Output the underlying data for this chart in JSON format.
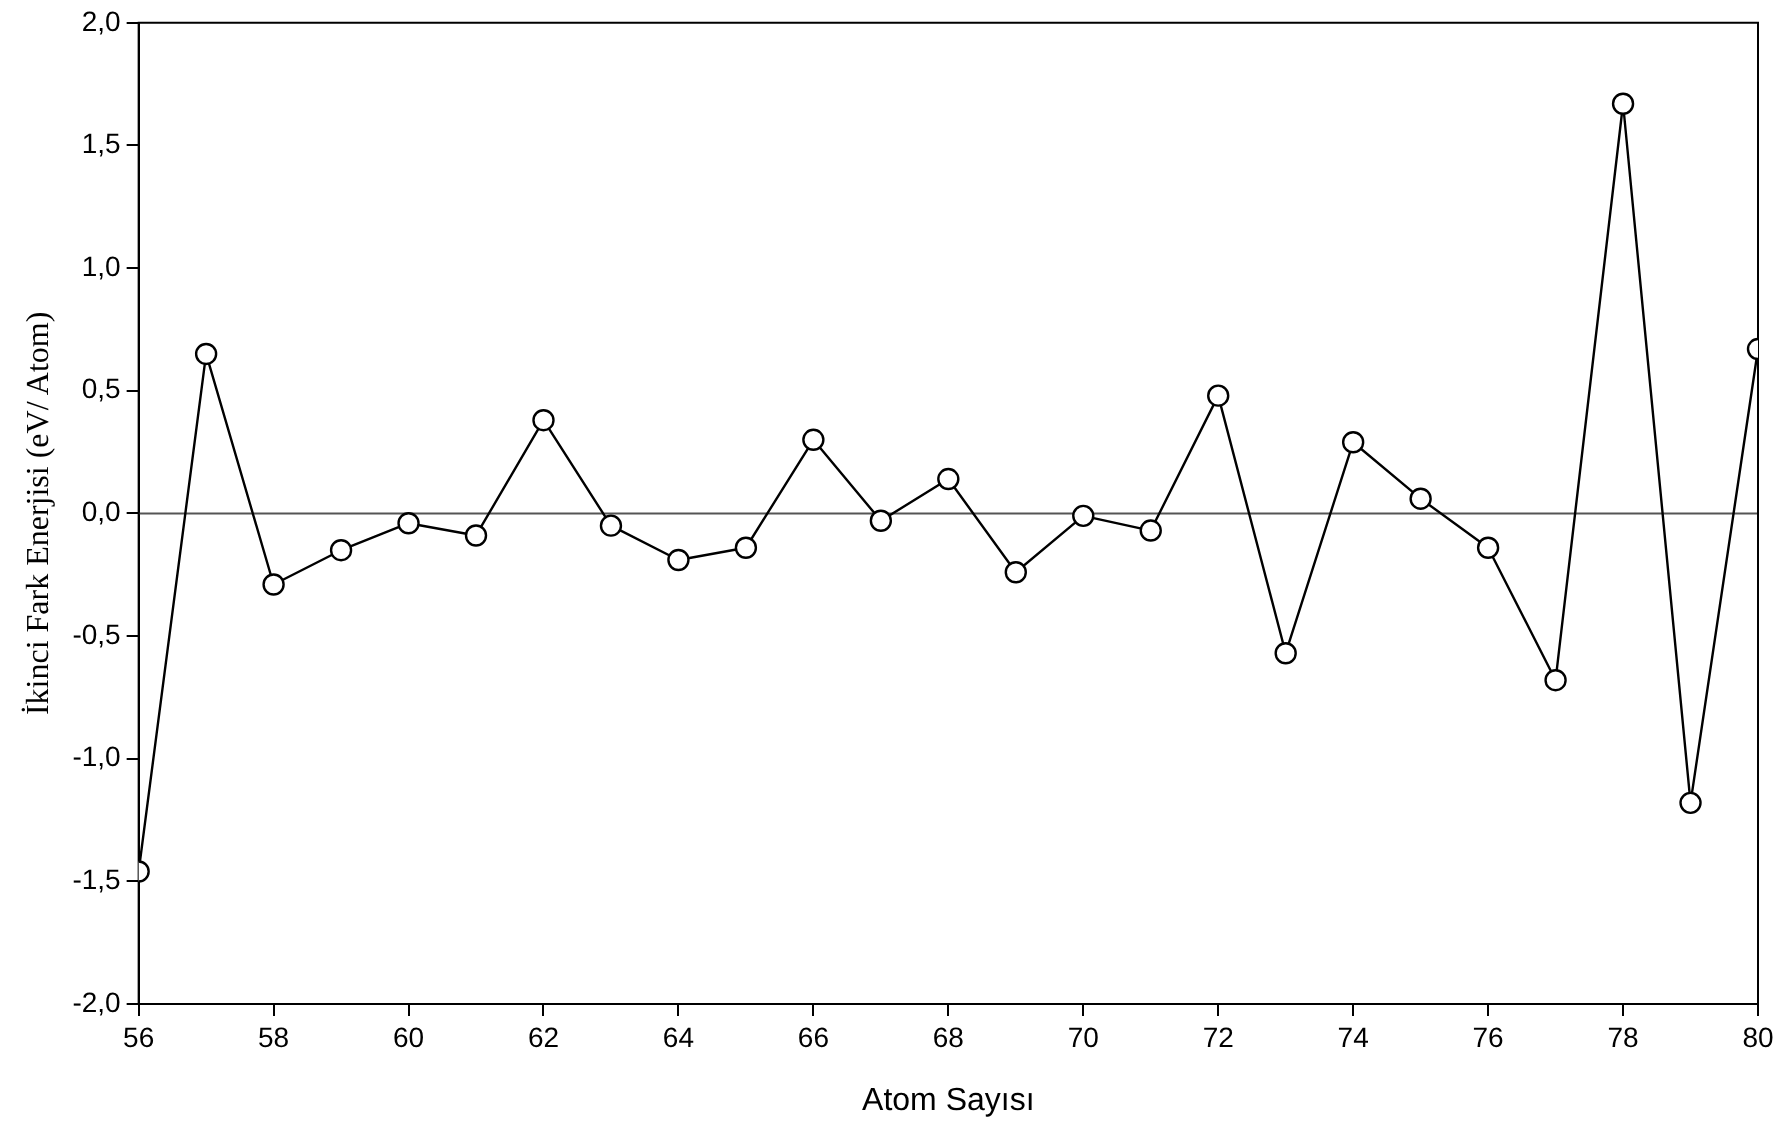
{
  "chart_data": {
    "type": "line",
    "xlabel": "Atom Sayısı",
    "ylabel": "İkinci Fark Enerjisi (eV/ Atom)",
    "x": [
      56,
      57,
      58,
      59,
      60,
      61,
      62,
      63,
      64,
      65,
      66,
      67,
      68,
      69,
      70,
      71,
      72,
      73,
      74,
      75,
      76,
      77,
      78,
      79,
      80
    ],
    "series": [
      {
        "color": "#000000",
        "values": [
          -1.46,
          0.65,
          -0.29,
          -0.15,
          -0.04,
          -0.09,
          0.38,
          -0.05,
          -0.19,
          -0.14,
          0.3,
          -0.03,
          0.14,
          -0.24,
          -0.01,
          -0.07,
          0.48,
          -0.57,
          0.29,
          0.06,
          -0.14,
          -0.68,
          1.67,
          -1.18,
          0.67
        ]
      }
    ],
    "xlim": [
      56,
      80
    ],
    "xticks": [
      56,
      58,
      60,
      62,
      64,
      66,
      68,
      70,
      72,
      74,
      76,
      78,
      80
    ],
    "ylim": [
      -2,
      2
    ],
    "yticks": [
      {
        "value": -2,
        "label": "-2,0"
      },
      {
        "value": -1.5,
        "label": "-1,5"
      },
      {
        "value": -1,
        "label": "-1,0"
      },
      {
        "value": -0.5,
        "label": "-0,5"
      },
      {
        "value": 0,
        "label": "0,0"
      },
      {
        "value": 0.5,
        "label": "0,5"
      },
      {
        "value": 1,
        "label": "1,0"
      },
      {
        "value": 1.5,
        "label": "1,5"
      },
      {
        "value": 2,
        "label": "2,0"
      }
    ],
    "ref_lines": [
      {
        "axis": "y",
        "value": 0,
        "color": "#555555"
      }
    ],
    "marker": "circle",
    "line_style": "solid",
    "grid": false,
    "legend": false
  }
}
